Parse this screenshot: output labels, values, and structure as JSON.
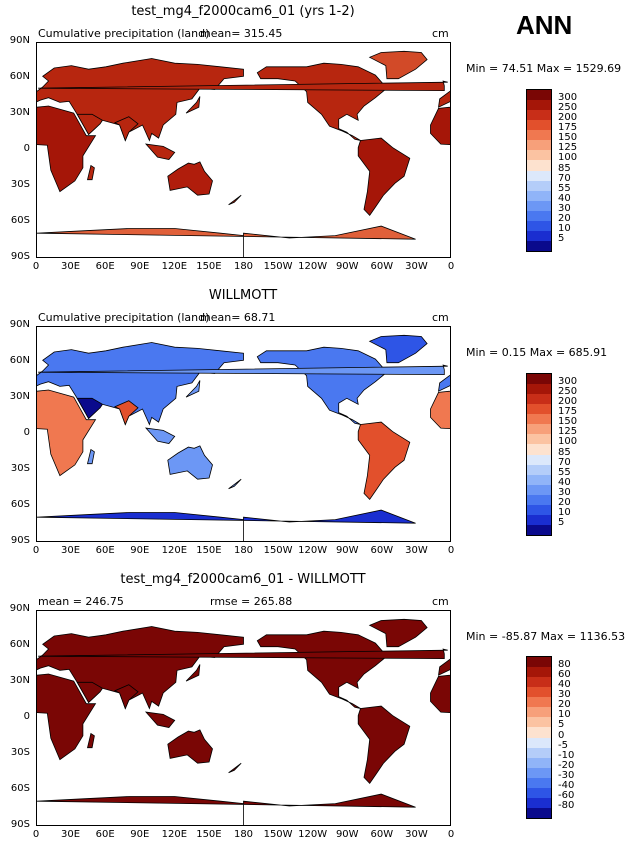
{
  "season": "ANN",
  "lat_ticks": [
    "90N",
    "60N",
    "30N",
    "0",
    "30S",
    "60S",
    "90S"
  ],
  "lon_ticks": [
    "0",
    "30E",
    "60E",
    "90E",
    "120E",
    "150E",
    "180",
    "150W",
    "120W",
    "90W",
    "60W",
    "30W",
    "0"
  ],
  "colors": {
    "abs": [
      "#0a0a8c",
      "#1a2ed0",
      "#2e55e6",
      "#4a78f0",
      "#6c97f5",
      "#90b4f8",
      "#b4cdf9",
      "#dce8fb",
      "#fde2cf",
      "#fbc3a2",
      "#f7a07a",
      "#f07850",
      "#e2502c",
      "#c82e18",
      "#a51608",
      "#7a0605"
    ],
    "diff": [
      "#0a0a8c",
      "#1a2ed0",
      "#2e55e6",
      "#4a78f0",
      "#6c97f5",
      "#90b4f8",
      "#b4cdf9",
      "#dce8fb",
      "#fde2cf",
      "#fbc3a2",
      "#f7a07a",
      "#f07850",
      "#e2502c",
      "#c82e18",
      "#a51608",
      "#7a0605"
    ]
  },
  "panels": [
    {
      "title": "test_mg4_f2000cam6_01 (yrs 1-2)",
      "left_text": "Cumulative precipitation (land)",
      "center_text": "mean=  315.45",
      "units": "cm",
      "minmax": "Min =   74.51 Max = 1529.69",
      "levels": [
        "300",
        "250",
        "200",
        "175",
        "150",
        "125",
        "100",
        "85",
        "70",
        "55",
        "40",
        "30",
        "20",
        "10",
        "5"
      ],
      "fill": "model"
    },
    {
      "title": "WILLMOTT",
      "left_text": "Cumulative precipitation (land)",
      "center_text": "mean=   68.71",
      "units": "cm",
      "minmax": "Min =    0.15 Max = 685.91",
      "levels": [
        "300",
        "250",
        "200",
        "175",
        "150",
        "125",
        "100",
        "85",
        "70",
        "55",
        "40",
        "30",
        "20",
        "10",
        "5"
      ],
      "fill": "obs"
    },
    {
      "title": "test_mg4_f2000cam6_01 - WILLMOTT",
      "left_text": "mean =  246.75",
      "center_text": "rmse =  265.88",
      "units": "cm",
      "minmax": "Min = -85.87 Max = 1136.53",
      "levels": [
        "80",
        "60",
        "40",
        "30",
        "20",
        "10",
        "5",
        "0",
        "-5",
        "-10",
        "-20",
        "-30",
        "-40",
        "-60",
        "-80"
      ],
      "fill": "diff"
    }
  ]
}
